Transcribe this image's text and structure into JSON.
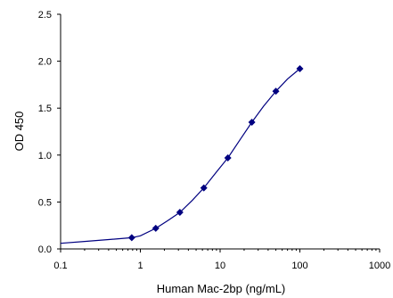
{
  "chart_data": {
    "type": "scatter",
    "title": "",
    "xlabel": "Human Mac-2bp (ng/mL)",
    "ylabel": "OD 450",
    "xscale": "log",
    "xlim": [
      0.1,
      1000
    ],
    "ylim": [
      0,
      2.5
    ],
    "x_ticks": [
      "0.1",
      "1",
      "10",
      "100",
      "1000"
    ],
    "y_ticks": [
      "0.0",
      "0.5",
      "1.0",
      "1.5",
      "2.0",
      "2.5"
    ],
    "grid": false,
    "legend": "none",
    "series": [
      {
        "marker": "diamond",
        "color": "#000080",
        "fit_line": true,
        "x": [
          0.78,
          1.56,
          3.13,
          6.25,
          12.5,
          25,
          50,
          100
        ],
        "y": [
          0.12,
          0.22,
          0.39,
          0.65,
          0.97,
          1.35,
          1.68,
          1.92
        ]
      }
    ],
    "fit_curve": {
      "x": [
        0.1,
        0.2,
        0.4,
        0.78,
        1.0,
        1.56,
        2.2,
        3.13,
        4.5,
        6.25,
        9.0,
        12.5,
        18,
        25,
        35,
        50,
        70,
        100
      ],
      "y": [
        0.06,
        0.08,
        0.1,
        0.12,
        0.14,
        0.22,
        0.3,
        0.39,
        0.52,
        0.65,
        0.82,
        0.97,
        1.17,
        1.35,
        1.52,
        1.68,
        1.81,
        1.92
      ]
    }
  }
}
